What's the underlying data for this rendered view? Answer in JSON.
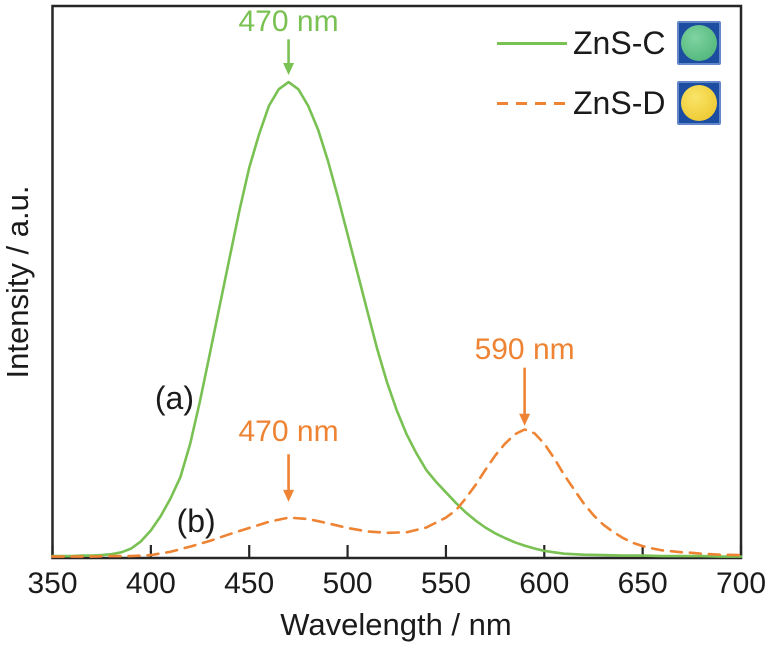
{
  "chart_data": {
    "type": "line",
    "title": "",
    "xlabel": "Wavelength / nm",
    "ylabel": "Intensity / a.u.",
    "xlim": [
      350,
      700
    ],
    "ylim": [
      0,
      1.16
    ],
    "x_ticks": [
      "350",
      "400",
      "450",
      "500",
      "550",
      "600",
      "650",
      "700"
    ],
    "grid": false,
    "legend_position": "top-right",
    "series": [
      {
        "name": "ZnS-C",
        "curve_tag": "(a)",
        "style": "solid",
        "color": "#79c153",
        "peak_nm": 470,
        "x": [
          350,
          355,
          360,
          365,
          370,
          375,
          380,
          385,
          390,
          395,
          400,
          405,
          410,
          415,
          420,
          425,
          430,
          435,
          440,
          445,
          450,
          455,
          460,
          465,
          470,
          475,
          480,
          485,
          490,
          495,
          500,
          505,
          510,
          515,
          520,
          525,
          530,
          535,
          540,
          545,
          550,
          555,
          560,
          565,
          570,
          575,
          580,
          585,
          590,
          595,
          600,
          605,
          610,
          620,
          630,
          640,
          650,
          660,
          670,
          680,
          690,
          700
        ],
        "y": [
          0.004,
          0.004,
          0.004,
          0.005,
          0.005,
          0.006,
          0.008,
          0.012,
          0.02,
          0.035,
          0.058,
          0.088,
          0.125,
          0.17,
          0.24,
          0.33,
          0.43,
          0.53,
          0.63,
          0.73,
          0.82,
          0.89,
          0.95,
          0.985,
          1.0,
          0.985,
          0.95,
          0.9,
          0.835,
          0.76,
          0.68,
          0.6,
          0.52,
          0.44,
          0.37,
          0.31,
          0.26,
          0.22,
          0.185,
          0.16,
          0.138,
          0.116,
          0.096,
          0.079,
          0.064,
          0.052,
          0.042,
          0.033,
          0.026,
          0.02,
          0.015,
          0.012,
          0.009,
          0.007,
          0.006,
          0.005,
          0.005,
          0.004,
          0.004,
          0.004,
          0.003,
          0.003
        ]
      },
      {
        "name": "ZnS-D",
        "curve_tag": "(b)",
        "style": "dashed",
        "color": "#ee8433",
        "peaks_nm": [
          470,
          590
        ],
        "x": [
          350,
          360,
          370,
          380,
          390,
          400,
          410,
          420,
          430,
          440,
          450,
          460,
          470,
          480,
          490,
          500,
          510,
          520,
          530,
          540,
          550,
          555,
          560,
          565,
          570,
          575,
          580,
          585,
          590,
          595,
          600,
          605,
          610,
          615,
          620,
          625,
          630,
          635,
          640,
          645,
          650,
          655,
          660,
          665,
          670,
          675,
          680,
          690,
          700
        ],
        "y": [
          0.003,
          0.003,
          0.003,
          0.004,
          0.004,
          0.006,
          0.013,
          0.024,
          0.036,
          0.05,
          0.063,
          0.076,
          0.085,
          0.082,
          0.073,
          0.063,
          0.056,
          0.053,
          0.054,
          0.064,
          0.085,
          0.1,
          0.125,
          0.153,
          0.185,
          0.215,
          0.24,
          0.26,
          0.27,
          0.262,
          0.24,
          0.21,
          0.175,
          0.145,
          0.115,
          0.09,
          0.07,
          0.055,
          0.042,
          0.032,
          0.025,
          0.02,
          0.016,
          0.014,
          0.012,
          0.011,
          0.009,
          0.007,
          0.006
        ]
      }
    ],
    "curve_labels": [
      {
        "text": "(a)",
        "x": 412,
        "y": 0.33
      },
      {
        "text": "(b)",
        "x": 423,
        "y": 0.071
      }
    ],
    "annotations": [
      {
        "text": "470 nm",
        "x": 470,
        "label_y": 1.125,
        "arrow_from_y": 1.09,
        "arrow_to_y": 1.015,
        "color": "#79c153"
      },
      {
        "text": "590 nm",
        "x": 590,
        "label_y": 0.435,
        "arrow_from_y": 0.4,
        "arrow_to_y": 0.278,
        "color": "#ee8433"
      },
      {
        "text": "470 nm",
        "x": 470,
        "label_y": 0.262,
        "arrow_from_y": 0.218,
        "arrow_to_y": 0.118,
        "color": "#ee8433"
      }
    ]
  },
  "legend": {
    "items": [
      {
        "label": "ZnS-C",
        "line_style": "solid",
        "line_color": "#79c153",
        "sample_photo": {
          "shape": "circle",
          "circle_color": "#55b97e",
          "highlight_color": "#7fd3a0",
          "background_color": "#1d4da0",
          "border_color": "#6288c9"
        }
      },
      {
        "label": "ZnS-D",
        "line_style": "dashed",
        "line_color": "#ee8433",
        "sample_photo": {
          "shape": "circle",
          "circle_color": "#efcb35",
          "highlight_color": "#f9e468",
          "background_color": "#1d4da0",
          "border_color": "#6288c9"
        }
      }
    ]
  },
  "colors": {
    "text": "#1b1b1b",
    "frame": "#262626",
    "background": "#ffffff"
  }
}
